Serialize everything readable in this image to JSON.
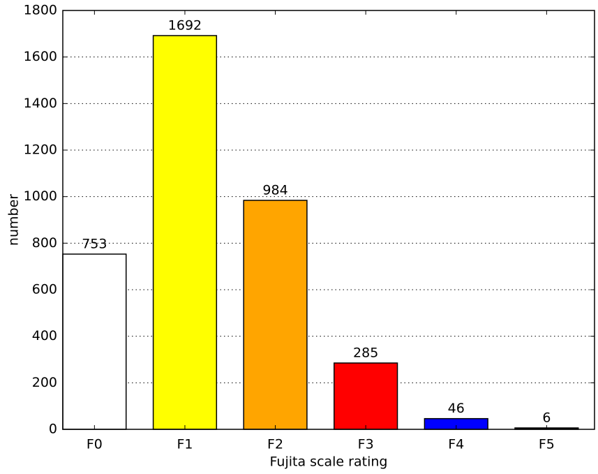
{
  "chart_data": {
    "type": "bar",
    "categories": [
      "F0",
      "F1",
      "F2",
      "F3",
      "F4",
      "F5"
    ],
    "values": [
      753,
      1692,
      984,
      285,
      46,
      6
    ],
    "colors": [
      "#ffffff",
      "#ffff00",
      "#ffa500",
      "#ff0000",
      "#0000ff",
      "#000000"
    ],
    "x_label": "Fujita scale rating",
    "y_label": "number",
    "ylim": [
      0,
      1800
    ],
    "yticks": [
      0,
      200,
      400,
      600,
      800,
      1000,
      1200,
      1400,
      1600,
      1800
    ],
    "grid": true
  }
}
